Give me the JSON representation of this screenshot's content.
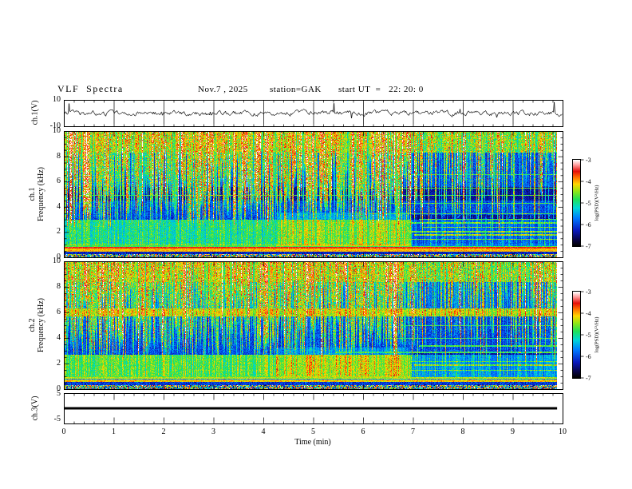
{
  "header": {
    "title": "VLF  Spectra",
    "date": "Nov.7 , 2025",
    "station": "station=GAK",
    "start_ut": "start UT  =   22: 20: 0"
  },
  "x_axis": {
    "label": "Time  (min)",
    "min": 0,
    "max": 10,
    "ticks": [
      "0",
      "1",
      "2",
      "3",
      "4",
      "5",
      "6",
      "7",
      "8",
      "9",
      "10"
    ],
    "minor_step_min": 0.2
  },
  "panels": {
    "ch1_wave": {
      "label": "ch.1(V)",
      "ymax_label": "10",
      "ymin_label": "-10",
      "ymax": 10,
      "ymin": -10
    },
    "ch1_spec": {
      "label_line1": "ch.1",
      "label_line2": "Frequency  (kHz)",
      "yticks": [
        "10",
        "8",
        "6",
        "4",
        "2",
        "0"
      ],
      "ymin_khz": 0,
      "ymax_khz": 10
    },
    "ch2_spec": {
      "label_line1": "ch.2",
      "label_line2": "Frequency  (kHz)",
      "yticks": [
        "10",
        "8",
        "6",
        "4",
        "2",
        "0"
      ],
      "ymin_khz": 0,
      "ymax_khz": 10
    },
    "ch3_wave": {
      "label": "ch.3(V)",
      "ymax_label": "5",
      "ymin_label": "-5",
      "ymax": 5,
      "ymin": -5
    }
  },
  "colorbar": {
    "label": "log(PSD)(V²/Hz)",
    "ticks": [
      "-3",
      "-4",
      "-5",
      "-6",
      "-7"
    ],
    "vmax": -3,
    "vmin": -7
  },
  "chart_data": [
    {
      "id": "ch1_wave",
      "type": "line",
      "title": "ch.1 raw signal (V)",
      "x_range_min": [
        0,
        10
      ],
      "y_range_V": [
        -10,
        10
      ],
      "baseline_V": 0,
      "typical_amplitude_V": 2,
      "occasional_spikes_V": 7,
      "data_end_min": 9.9,
      "render": {
        "seed": 911,
        "sigma": 1.3,
        "smooth": 0.7,
        "spike_p": 0.015,
        "spike_amp": 7
      }
    },
    {
      "id": "ch1_spec",
      "type": "heatmap",
      "title": "ch.1 spectrogram",
      "x_range_min": [
        0,
        10
      ],
      "y_range_kHz": [
        0,
        10
      ],
      "z_log_psd": [
        -7,
        -3
      ],
      "data_end_min": 9.85,
      "features": [
        "dense vertical sferic streaks 3-10 kHz, sparser after ~7 min",
        "bright yellow band 0.45-0.85 kHz with red line",
        "cyan-green hiss band 1-3 kHz",
        "diffuse green enhancement below 3.6 kHz between ~4.3 and 7 min",
        "dark band 4.6-5.6 kHz",
        "broadband rainbow speckle strip 0-0.3 kHz",
        "narrowband horizontal lines mostly in right half"
      ],
      "render": {
        "seed": 12345,
        "bands": [
          [
            8.3,
            10.01,
            0.45,
            0.28
          ],
          [
            5.6,
            8.3,
            0.2,
            0.13
          ],
          [
            4.55,
            5.6,
            0.1,
            0.09
          ],
          [
            3.0,
            4.55,
            0.19,
            0.13
          ],
          [
            1.1,
            3.0,
            0.42,
            0.17
          ],
          [
            0.86,
            1.1,
            0.5,
            0.14
          ],
          [
            0.72,
            0.86,
            0.84,
            0.06
          ],
          [
            0.45,
            0.72,
            0.7,
            0.09
          ],
          [
            0.26,
            0.45,
            0.12,
            0.14
          ],
          [
            -0.01,
            0.26,
            -1,
            0
          ]
        ],
        "blob": {
          "t0": 4.3,
          "t1": 7.0,
          "fmax": 3.6,
          "add": 0.14
        },
        "fade": {
          "t0": 7.05,
          "fmax": 3.4,
          "mul": 0.55
        },
        "streaks": {
          "t_split": 7.05,
          "p_early": 0.85,
          "p_late": 0.5
        },
        "hlines": [
          [
            4.95,
            0.3,
            10,
            0.5
          ],
          [
            2.05,
            4.8,
            10,
            0.55
          ],
          [
            2.75,
            5.1,
            10,
            0.52
          ],
          [
            1.45,
            5.4,
            10,
            0.55
          ],
          [
            3.5,
            6.2,
            10,
            0.5
          ],
          [
            5.5,
            5.2,
            10,
            0.5
          ],
          [
            6.6,
            6.0,
            10,
            0.48
          ],
          [
            1.8,
            7.1,
            10,
            0.58
          ],
          [
            2.4,
            7.25,
            10,
            0.55
          ],
          [
            3.05,
            7.2,
            10,
            0.52
          ],
          [
            4.3,
            6.6,
            10,
            0.48
          ]
        ]
      }
    },
    {
      "id": "ch2_spec",
      "type": "heatmap",
      "title": "ch.2 spectrogram",
      "x_range_min": [
        0,
        10
      ],
      "y_range_kHz": [
        0,
        10
      ],
      "z_log_psd": [
        -7,
        -3
      ],
      "data_end_min": 9.85,
      "features": [
        "dense vertical sferic streaks, sparser after ~7 min",
        "yellow-green narrow band near 6 kHz across full record",
        "bright green hiss band 1-2.7 kHz",
        "diffuse enhancement below 3.3 kHz between ~4.3 and 7 min",
        "broadband rainbow speckle strip 0-0.35 kHz",
        "narrowband horizontal lines mostly in right half"
      ],
      "render": {
        "seed": 67890,
        "bands": [
          [
            8.4,
            10.01,
            0.47,
            0.28
          ],
          [
            6.35,
            8.4,
            0.24,
            0.14
          ],
          [
            5.7,
            6.35,
            0.6,
            0.16
          ],
          [
            2.7,
            5.7,
            0.19,
            0.14
          ],
          [
            0.95,
            2.7,
            0.5,
            0.17
          ],
          [
            0.78,
            0.95,
            0.28,
            0.18
          ],
          [
            0.6,
            0.78,
            0.62,
            0.2
          ],
          [
            0.36,
            0.6,
            0.14,
            0.18
          ],
          [
            -0.01,
            0.36,
            -1,
            0
          ]
        ],
        "blob": {
          "t0": 4.3,
          "t1": 7.0,
          "fmax": 3.3,
          "add": 0.12
        },
        "fade": {
          "t0": 7.05,
          "fmax": 3.0,
          "mul": 0.6
        },
        "streaks": {
          "t_split": 7.05,
          "p_early": 0.85,
          "p_late": 0.5
        },
        "hlines": [
          [
            6.05,
            0,
            10,
            0.66
          ],
          [
            0.9,
            0,
            10,
            0.6
          ],
          [
            1.5,
            2.5,
            10,
            0.55
          ],
          [
            2.2,
            5.0,
            10,
            0.53
          ],
          [
            2.9,
            5.5,
            10,
            0.5
          ],
          [
            4.0,
            6.5,
            10,
            0.48
          ],
          [
            5.0,
            6.8,
            10,
            0.48
          ],
          [
            1.9,
            7.1,
            10,
            0.58
          ],
          [
            3.4,
            7.2,
            10,
            0.5
          ]
        ]
      }
    },
    {
      "id": "ch3_wave",
      "type": "line",
      "title": "ch.3 raw signal (V)",
      "x_range_min": [
        0,
        10
      ],
      "y_range_V": [
        -5,
        5
      ],
      "constant_value_V": 0,
      "trace_thickness_px": 3,
      "data_end_min": 9.85,
      "render": {
        "seed": 3,
        "value": 0
      }
    }
  ]
}
